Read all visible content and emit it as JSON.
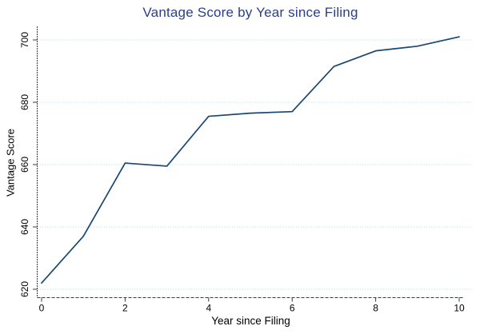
{
  "chart_data": {
    "type": "line",
    "title": "Vantage Score by Year since Filing",
    "xlabel": "Year since Filing",
    "ylabel": "Vantage Score",
    "x": [
      0,
      1,
      2,
      3,
      4,
      5,
      6,
      7,
      8,
      9,
      10
    ],
    "values": [
      622,
      637,
      660.5,
      659.5,
      675.5,
      676.5,
      677,
      691.5,
      696.5,
      698,
      701
    ],
    "series_name": "Vantage Score",
    "xticks": [
      0,
      2,
      4,
      6,
      8,
      10
    ],
    "yticks": [
      620,
      640,
      660,
      680,
      700
    ],
    "xlim": [
      0,
      10
    ],
    "ylim": [
      620,
      700
    ],
    "grid": "horizontal-dotted",
    "legend": "none",
    "colors": {
      "line": "#1a476f",
      "title": "#2b3f87",
      "grid": "#aed8e8",
      "axis": "#3a3a3a",
      "tick_label": "#000000"
    }
  }
}
